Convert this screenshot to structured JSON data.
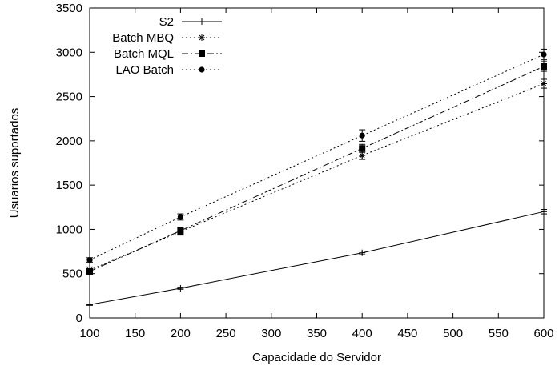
{
  "chart_data": {
    "type": "line",
    "title": "",
    "xlabel": "Capacidade do Servidor",
    "ylabel": "Usuarios suportados",
    "xlim": [
      100,
      600
    ],
    "ylim": [
      0,
      3500
    ],
    "xticks": [
      100,
      150,
      200,
      250,
      300,
      350,
      400,
      450,
      500,
      550,
      600
    ],
    "yticks": [
      0,
      500,
      1000,
      1500,
      2000,
      2500,
      3000,
      3500
    ],
    "grid": false,
    "legend_position": "top-left",
    "x": [
      100,
      200,
      400,
      600
    ],
    "series": [
      {
        "name": "S2",
        "values": [
          150,
          335,
          735,
          1200
        ],
        "error": [
          8,
          12,
          20,
          25
        ],
        "marker": "plus",
        "dash": "solid"
      },
      {
        "name": "Batch MBQ",
        "values": [
          540,
          975,
          1835,
          2645
        ],
        "error": [
          35,
          40,
          45,
          50
        ],
        "marker": "star",
        "dash": "dotted"
      },
      {
        "name": "Batch MQL",
        "values": [
          525,
          985,
          1915,
          2840
        ],
        "error": [
          30,
          40,
          45,
          55
        ],
        "marker": "square",
        "dash": "dashdot"
      },
      {
        "name": "LAO Batch",
        "values": [
          655,
          1140,
          2060,
          2975
        ],
        "error": [
          25,
          35,
          65,
          60
        ],
        "marker": "circle",
        "dash": "dotted"
      }
    ]
  }
}
